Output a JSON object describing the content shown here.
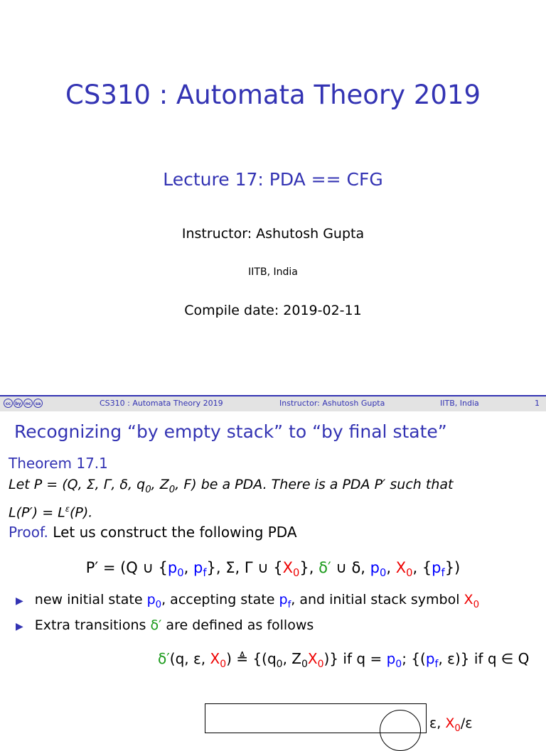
{
  "slide1": {
    "title": "CS310 : Automata Theory 2019",
    "subtitle": "Lecture 17: PDA == CFG",
    "instructor": "Instructor: Ashutosh Gupta",
    "institute": "IITB, India",
    "compile_date": "Compile date: 2019-02-11"
  },
  "footer": {
    "license_icons": "cc by nc sa",
    "course": "CS310 : Automata Theory 2019",
    "instructor": "Instructor: Ashutosh Gupta",
    "institute": "IITB, India",
    "page": "1"
  },
  "slide2": {
    "frame_title": "Recognizing “by empty stack” to “by final state”",
    "theorem_label": "Theorem 17.1",
    "theorem_line1": "Let P = (Q, Σ, Γ, δ, q0, Z0, F) be a PDA. There is a PDA P′ such that",
    "theorem_line2": "L(P′) = Lε(P).",
    "proof_label": "Proof.",
    "proof_text": "Let us construct the following PDA",
    "equation": "P′ = (Q ∪ {p0, pf}, Σ, Γ ∪ {X0}, δ′ ∪ δ, p0, X0, {pf})",
    "bullets": [
      "new initial state p0, accepting state pf, and initial stack symbol X0",
      "Extra transitions δ′ are defined as follows"
    ],
    "definition": "δ′(q, ε, X0) ≜ {(q0, Z0X0)} if q = p0; {(pf, ε)} if q ∈ Q",
    "edge_label": "ε, X0/ε",
    "colors": {
      "accent": "#3333b3",
      "red": "#e00000",
      "blue": "#0000ff",
      "green": "#1a9a1a"
    }
  }
}
